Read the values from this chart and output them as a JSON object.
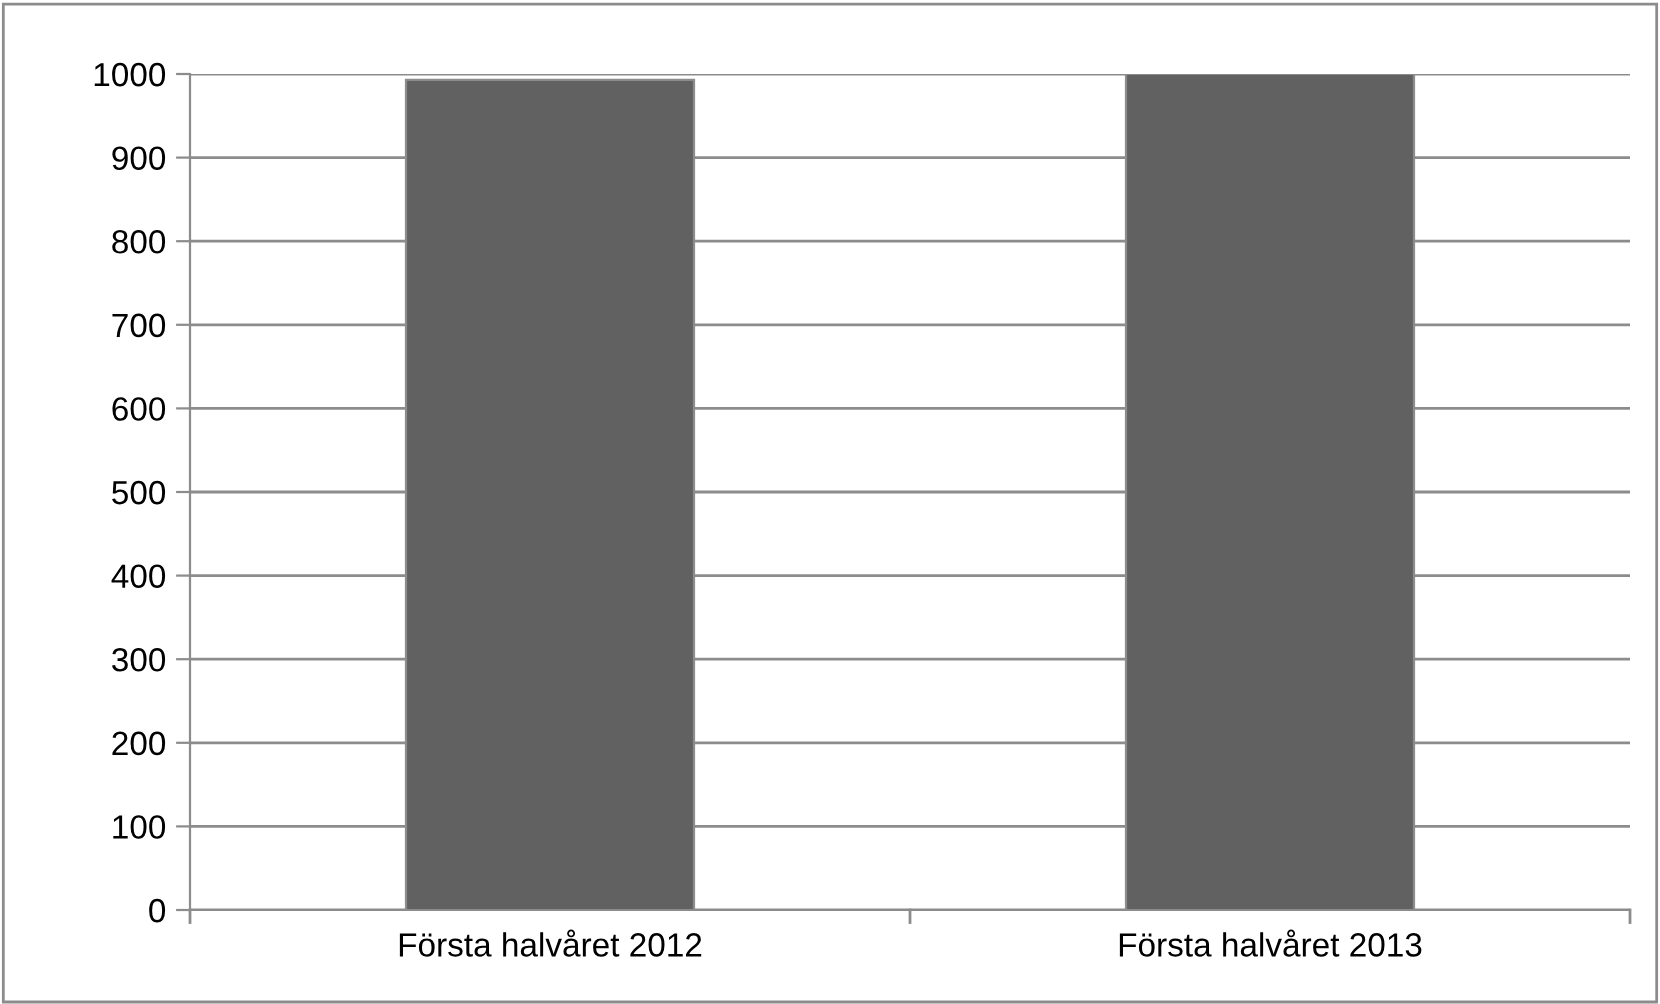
{
  "chart_data": {
    "type": "bar",
    "categories": [
      "Första halvåret 2012",
      "Första halvåret 2013"
    ],
    "values": [
      993,
      1000
    ],
    "color": "#616161",
    "ylim": [
      0,
      1000
    ],
    "yticks": [
      0,
      100,
      200,
      300,
      400,
      500,
      600,
      700,
      800,
      900,
      1000
    ],
    "grid": "y",
    "legend": false
  }
}
